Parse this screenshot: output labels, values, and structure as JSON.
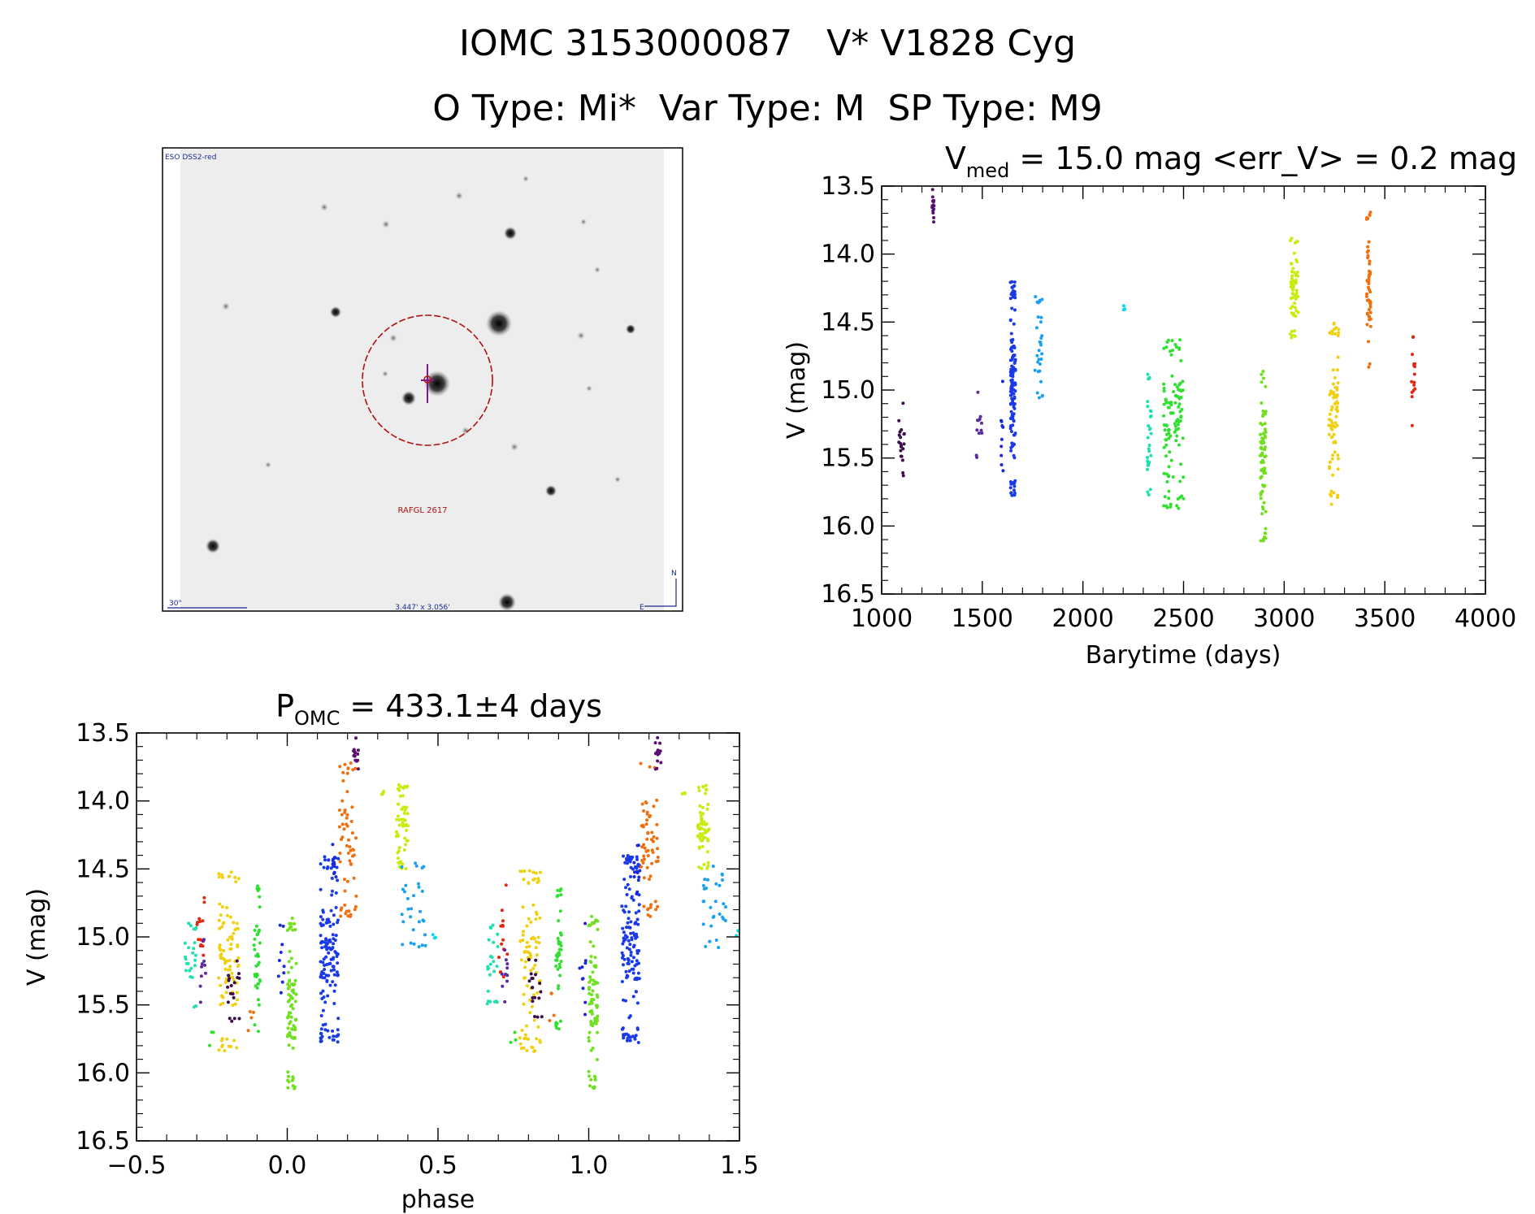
{
  "header": {
    "title_line1": "IOMC 3153000087   V* V1828 Cyg",
    "title_line2": "O Type: Mi*  Var Type: M  SP Type: M9"
  },
  "image_panel": {
    "survey_label": "ESO DSS2-red",
    "object_label": "RAFGL 2617",
    "scale_label": "30\"",
    "size_label": "3.447' x 3.056'",
    "north_label": "N",
    "east_label": "E"
  },
  "chart_data": [
    {
      "type": "scatter",
      "id": "light_curve",
      "title_prefix": "V",
      "title_sub": "med",
      "title_rest": " = 15.0 mag <err_V> = 0.2 mag",
      "xlabel": "Barytime (days)",
      "ylabel": "V (mag)",
      "xlim": [
        1000,
        4000
      ],
      "ylim": [
        16.5,
        13.5
      ],
      "yinverted": true,
      "xticks": [
        "1000",
        "1500",
        "2000",
        "2500",
        "3000",
        "3500",
        "4000"
      ],
      "yticks": [
        "13.5",
        "14.0",
        "14.5",
        "15.0",
        "15.5",
        "16.0",
        "16.5"
      ],
      "series": [
        {
          "name": "s1",
          "color": "#3d0f4a",
          "x": [
            1085,
            1115
          ],
          "vmin": 15.07,
          "vmax": 15.65,
          "vmean": 15.45,
          "n": 20
        },
        {
          "name": "s2",
          "color": "#5a1070",
          "x": [
            1250,
            1260
          ],
          "vmin": 13.52,
          "vmax": 13.78,
          "vmean": 13.65,
          "n": 14
        },
        {
          "name": "s3",
          "color": "#5a2aa0",
          "x": [
            1470,
            1500
          ],
          "vmin": 15.0,
          "vmax": 15.5,
          "vmean": 15.35,
          "n": 12
        },
        {
          "name": "s4",
          "color": "#1a2ad8",
          "x": [
            1590,
            1605
          ],
          "vmin": 14.9,
          "vmax": 15.6,
          "vmean": 15.3,
          "n": 10
        },
        {
          "name": "s5",
          "color": "#1a3ae8",
          "x": [
            1640,
            1665
          ],
          "vmin": 14.2,
          "vmax": 15.78,
          "vmean": 15.0,
          "n": 140
        },
        {
          "name": "s6",
          "color": "#1aa0f0",
          "x": [
            1760,
            1800
          ],
          "vmin": 14.3,
          "vmax": 15.08,
          "vmean": 14.7,
          "n": 30
        },
        {
          "name": "s7",
          "color": "#10d8f0",
          "x": [
            2200,
            2212
          ],
          "vmin": 14.38,
          "vmax": 14.43,
          "vmean": 14.41,
          "n": 4
        },
        {
          "name": "s8",
          "color": "#20e0b0",
          "x": [
            2320,
            2340
          ],
          "vmin": 14.88,
          "vmax": 15.78,
          "vmean": 15.25,
          "n": 30
        },
        {
          "name": "s9",
          "color": "#30e030",
          "x": [
            2400,
            2500
          ],
          "vmin": 14.62,
          "vmax": 15.88,
          "vmean": 15.15,
          "n": 110
        },
        {
          "name": "s10",
          "color": "#70e020",
          "x": [
            2880,
            2910
          ],
          "vmin": 14.85,
          "vmax": 16.12,
          "vmean": 15.4,
          "n": 80
        },
        {
          "name": "s11",
          "color": "#c8ec10",
          "x": [
            3030,
            3070
          ],
          "vmin": 13.88,
          "vmax": 14.62,
          "vmean": 14.25,
          "n": 60
        },
        {
          "name": "s12",
          "color": "#f0d010",
          "x": [
            3220,
            3270
          ],
          "vmin": 14.5,
          "vmax": 15.85,
          "vmean": 15.3,
          "n": 80
        },
        {
          "name": "s13",
          "color": "#f07010",
          "x": [
            3410,
            3430
          ],
          "vmin": 13.65,
          "vmax": 14.85,
          "vmean": 14.2,
          "n": 50
        },
        {
          "name": "s14",
          "color": "#e02a10",
          "x": [
            3630,
            3650
          ],
          "vmin": 14.6,
          "vmax": 15.28,
          "vmean": 14.95,
          "n": 16
        }
      ]
    },
    {
      "type": "scatter",
      "id": "phase_curve",
      "title_prefix": "P",
      "title_sub": "OMC",
      "title_rest": " = 433.1±4 days",
      "xlabel": "phase",
      "ylabel": "V (mag)",
      "xlim": [
        -0.5,
        1.5
      ],
      "ylim": [
        16.5,
        13.5
      ],
      "yinverted": true,
      "xticks": [
        "−0.5",
        "0.0",
        "0.5",
        "1.0",
        "1.5"
      ],
      "yticks": [
        "13.5",
        "14.0",
        "14.5",
        "15.0",
        "15.5",
        "16.0",
        "16.5"
      ],
      "series": [
        {
          "name": "p1",
          "color": "#20e0b0",
          "x": [
            -0.34,
            -0.3
          ],
          "vmin": 14.9,
          "vmax": 15.52,
          "vmean": 15.25,
          "n": 24
        },
        {
          "name": "p2",
          "color": "#e02a10",
          "x": [
            -0.3,
            -0.27
          ],
          "vmin": 14.6,
          "vmax": 15.3,
          "vmean": 14.95,
          "n": 14
        },
        {
          "name": "p3",
          "color": "#5a2aa0",
          "x": [
            -0.29,
            -0.27
          ],
          "vmin": 15.0,
          "vmax": 15.5,
          "vmean": 15.35,
          "n": 10
        },
        {
          "name": "p4",
          "color": "#30e030",
          "x": [
            -0.26,
            -0.24
          ],
          "vmin": 15.7,
          "vmax": 15.8,
          "vmean": 15.75,
          "n": 3
        },
        {
          "name": "p5",
          "color": "#f0d010",
          "x": [
            -0.23,
            -0.16
          ],
          "vmin": 14.5,
          "vmax": 15.85,
          "vmean": 15.3,
          "n": 90
        },
        {
          "name": "p6",
          "color": "#3d0f4a",
          "x": [
            -0.2,
            -0.15
          ],
          "vmin": 15.15,
          "vmax": 15.62,
          "vmean": 15.45,
          "n": 18
        },
        {
          "name": "p7",
          "color": "#f07010",
          "x": [
            -0.13,
            -0.11
          ],
          "vmin": 15.4,
          "vmax": 15.7,
          "vmean": 15.55,
          "n": 4
        },
        {
          "name": "p8",
          "color": "#30e030",
          "x": [
            -0.11,
            -0.09
          ],
          "vmin": 14.62,
          "vmax": 15.7,
          "vmean": 15.15,
          "n": 40
        },
        {
          "name": "p9",
          "color": "#1a2ad8",
          "x": [
            -0.03,
            -0.01
          ],
          "vmin": 14.9,
          "vmax": 15.6,
          "vmean": 15.3,
          "n": 10
        },
        {
          "name": "p10",
          "color": "#70e020",
          "x": [
            0.0,
            0.03
          ],
          "vmin": 14.85,
          "vmax": 16.12,
          "vmean": 15.4,
          "n": 80
        },
        {
          "name": "p11",
          "color": "#1a3ae8",
          "x": [
            0.11,
            0.17
          ],
          "vmin": 14.4,
          "vmax": 15.78,
          "vmean": 15.1,
          "n": 140
        },
        {
          "name": "p12",
          "color": "#1a2ad8",
          "x": [
            0.15,
            0.17
          ],
          "vmin": 14.3,
          "vmax": 14.7,
          "vmean": 14.5,
          "n": 12
        },
        {
          "name": "p13",
          "color": "#f07010",
          "x": [
            0.17,
            0.23
          ],
          "vmin": 13.72,
          "vmax": 14.85,
          "vmean": 14.2,
          "n": 60
        },
        {
          "name": "p14",
          "color": "#5a1070",
          "x": [
            0.22,
            0.24
          ],
          "vmin": 13.52,
          "vmax": 13.78,
          "vmean": 13.65,
          "n": 14
        },
        {
          "name": "p15",
          "color": "#c8ec10",
          "x": [
            0.31,
            0.32
          ],
          "vmin": 13.93,
          "vmax": 13.96,
          "vmean": 13.95,
          "n": 4
        },
        {
          "name": "p16",
          "color": "#c8ec10",
          "x": [
            0.36,
            0.4
          ],
          "vmin": 13.88,
          "vmax": 14.5,
          "vmean": 14.25,
          "n": 60
        },
        {
          "name": "p17",
          "color": "#1aa0f0",
          "x": [
            0.38,
            0.46
          ],
          "vmin": 14.45,
          "vmax": 15.08,
          "vmean": 14.75,
          "n": 30
        },
        {
          "name": "p18",
          "color": "#10d8f0",
          "x": [
            0.48,
            0.5
          ],
          "vmin": 14.95,
          "vmax": 15.05,
          "vmean": 15.0,
          "n": 3
        }
      ]
    }
  ]
}
